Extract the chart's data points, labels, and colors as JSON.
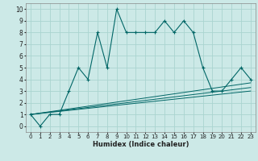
{
  "xlabel": "Humidex (Indice chaleur)",
  "ylabel": "",
  "xlim": [
    -0.5,
    23.5
  ],
  "ylim": [
    -0.5,
    10.5
  ],
  "xticks": [
    0,
    1,
    2,
    3,
    4,
    5,
    6,
    7,
    8,
    9,
    10,
    11,
    12,
    13,
    14,
    15,
    16,
    17,
    18,
    19,
    20,
    21,
    22,
    23
  ],
  "yticks": [
    0,
    1,
    2,
    3,
    4,
    5,
    6,
    7,
    8,
    9,
    10
  ],
  "bg_color": "#cce9e7",
  "line_color": "#006666",
  "grid_color": "#aad4d0",
  "main_x": [
    0,
    1,
    2,
    3,
    4,
    5,
    6,
    7,
    8,
    9,
    10,
    11,
    12,
    13,
    14,
    15,
    16,
    17,
    18,
    19,
    20,
    21,
    22,
    23
  ],
  "main_y": [
    1,
    0,
    1,
    1,
    3,
    5,
    4,
    8,
    5,
    10,
    8,
    8,
    8,
    8,
    9,
    8,
    9,
    8,
    5,
    3,
    3,
    4,
    5,
    4
  ],
  "line2_x": [
    0,
    23
  ],
  "line2_y": [
    1,
    3.0
  ],
  "line3_x": [
    0,
    23
  ],
  "line3_y": [
    1,
    3.3
  ],
  "line4_x": [
    0,
    23
  ],
  "line4_y": [
    1,
    3.7
  ]
}
